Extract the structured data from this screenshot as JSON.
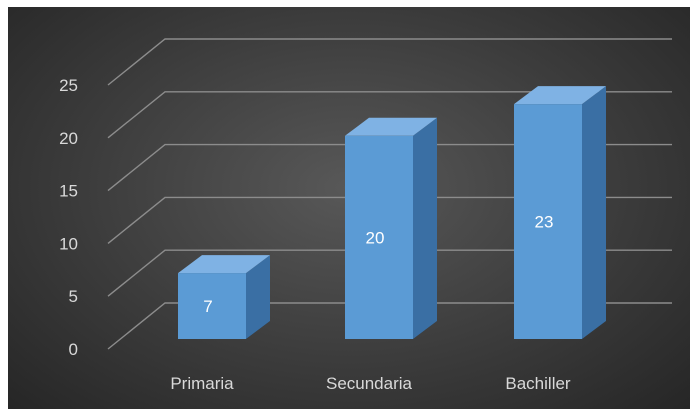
{
  "chart_data": {
    "type": "bar",
    "categories": [
      "Primaria",
      "Secundaria",
      "Bachiller"
    ],
    "values": [
      7,
      20,
      23
    ],
    "y_ticks": [
      "0",
      "5",
      "10",
      "15",
      "20",
      "25"
    ],
    "ylim": [
      0,
      25
    ],
    "grid": true,
    "legend": "none",
    "title": "",
    "xlabel": "",
    "ylabel": "",
    "colors": {
      "bar_front": "#5b9bd5",
      "bar_side": "#3a6fa4",
      "bar_top": "#7fb2e4",
      "gridline": "#8c8c8c",
      "background": "#404040"
    }
  }
}
